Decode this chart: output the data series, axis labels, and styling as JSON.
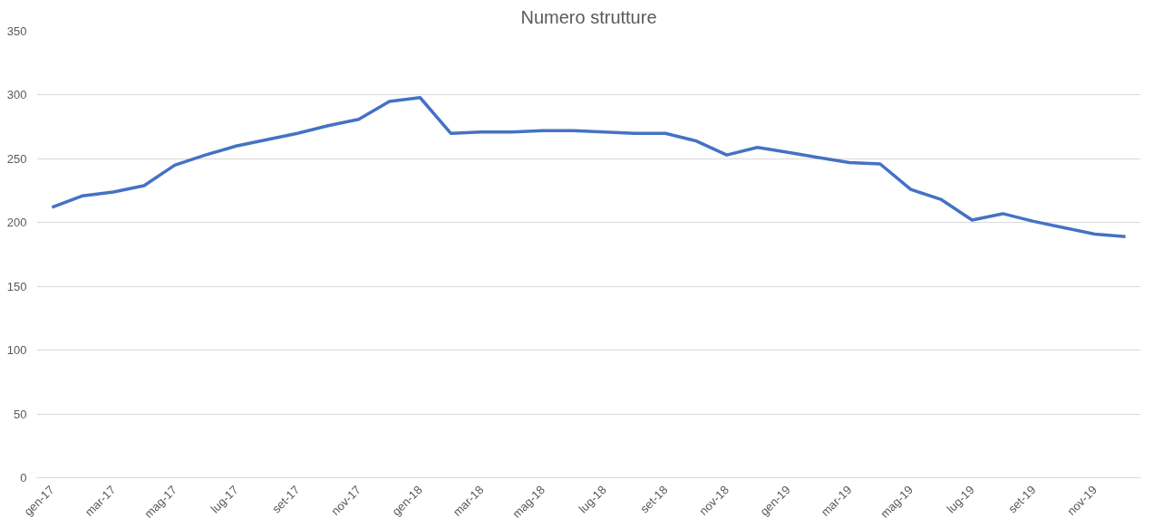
{
  "chart_data": {
    "type": "line",
    "title": "Numero strutture",
    "categories": [
      "gen-17",
      null,
      "mar-17",
      null,
      "mag-17",
      null,
      "lug-17",
      null,
      "set-17",
      null,
      "nov-17",
      null,
      "gen-18",
      null,
      "mar-18",
      null,
      "mag-18",
      null,
      "lug-18",
      null,
      "set-18",
      null,
      "nov-18",
      null,
      "gen-19",
      null,
      "mar-19",
      null,
      "mag-19",
      null,
      "lug-19",
      null,
      "set-19",
      null,
      "nov-19",
      null
    ],
    "series": [
      {
        "color": "#4472c4",
        "values": [
          212,
          221,
          224,
          229,
          245,
          253,
          260,
          265,
          270,
          276,
          281,
          295,
          298,
          270,
          271,
          271,
          272,
          272,
          271,
          270,
          270,
          264,
          253,
          259,
          255,
          251,
          247,
          246,
          226,
          218,
          202,
          207,
          201,
          196,
          191,
          189
        ]
      }
    ],
    "ylim": [
      0,
      350
    ],
    "yticks": [
      0,
      50,
      100,
      150,
      200,
      250,
      300,
      350
    ],
    "grid": "y",
    "marker": "none",
    "line_style": "solid"
  }
}
